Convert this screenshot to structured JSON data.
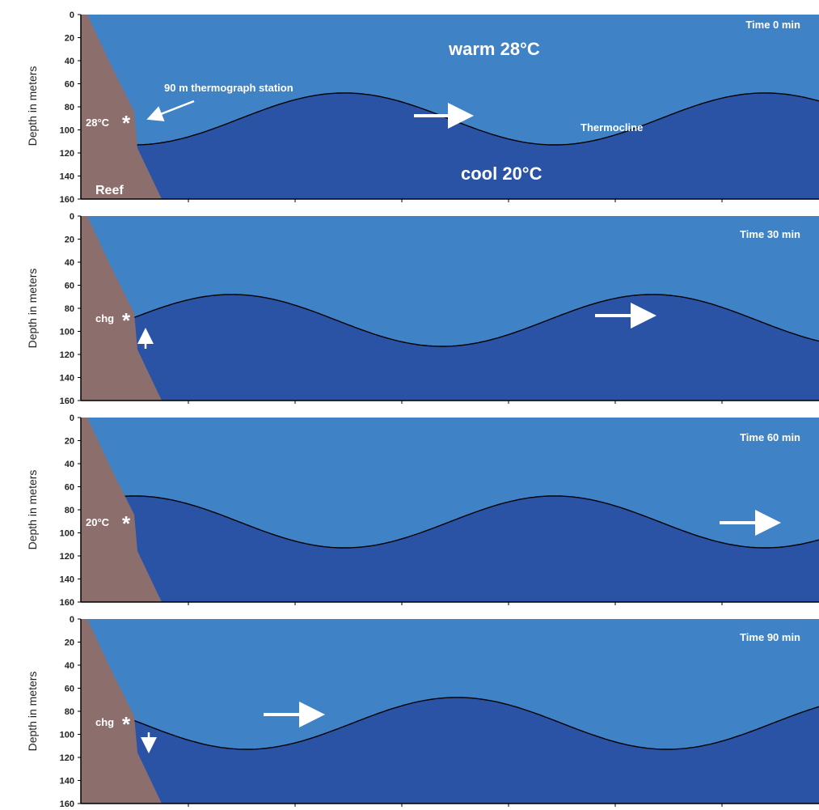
{
  "figure": {
    "y_axis_label": "Depth in meters",
    "depth_ticks": [
      "0",
      "20",
      "40",
      "60",
      "80",
      "100",
      "120",
      "140",
      "160"
    ],
    "depth_range": [
      0,
      160
    ],
    "reef_label": "Reef",
    "station_label": "90 m thermograph station",
    "warm_label": "warm 28°C",
    "cool_label": "cool 20°C",
    "thermocline_label": "Thermocline",
    "station_depth_m": 88,
    "colors": {
      "warm_layer": "#3f82c6",
      "cool_layer": "#2a53a6",
      "reef": "#8c6f6d",
      "text": "#ffffff"
    }
  },
  "panels": [
    {
      "time_label": "Time  0 min",
      "station_reading": "28°C",
      "station_arrow": "none",
      "thermocline_crest_depth_m": 68,
      "thermocline_trough_depth_m": 113,
      "thermocline_start_depth_m": 113
    },
    {
      "time_label": "Time 30 min",
      "station_reading": "chg",
      "station_arrow": "up",
      "thermocline_crest_depth_m": 68,
      "thermocline_trough_depth_m": 113,
      "thermocline_start_depth_m": 88
    },
    {
      "time_label": "Time 60 min",
      "station_reading": "20°C",
      "station_arrow": "none",
      "thermocline_crest_depth_m": 68,
      "thermocline_trough_depth_m": 113,
      "thermocline_start_depth_m": 68
    },
    {
      "time_label": "Time 90 min",
      "station_reading": "chg",
      "station_arrow": "down",
      "thermocline_crest_depth_m": 68,
      "thermocline_trough_depth_m": 113,
      "thermocline_start_depth_m": 88
    }
  ]
}
